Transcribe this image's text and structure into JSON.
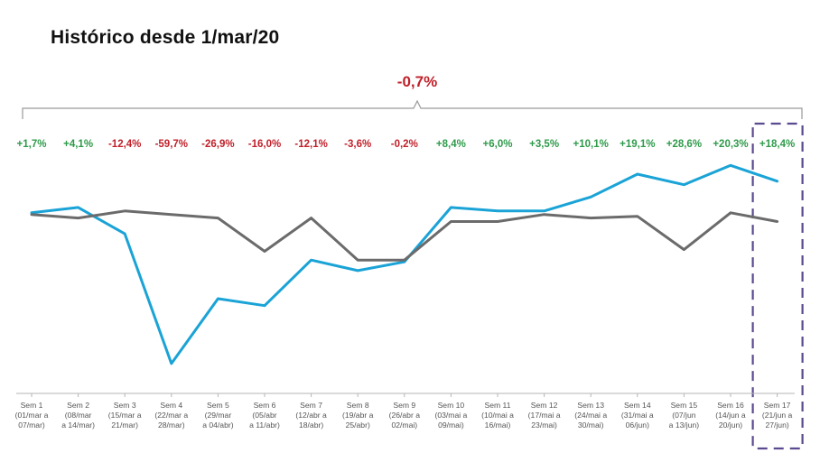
{
  "chart_data": {
    "type": "line",
    "title": "Histórico desde 1/mar/20",
    "total_change": "-0,7%",
    "categories": [
      [
        "Sem 1",
        "(01/mar a",
        "07/mar)"
      ],
      [
        "Sem 2",
        "(08/mar",
        "a 14/mar)"
      ],
      [
        "Sem 3",
        "(15/mar a",
        "21/mar)"
      ],
      [
        "Sem 4",
        "(22/mar a",
        "28/mar)"
      ],
      [
        "Sem 5",
        "(29/mar",
        "a 04/abr)"
      ],
      [
        "Sem 6",
        "(05/abr",
        "a 11/abr)"
      ],
      [
        "Sem 7",
        "(12/abr a",
        "18/abr)"
      ],
      [
        "Sem 8",
        "(19/abr a",
        "25/abr)"
      ],
      [
        "Sem 9",
        "(26/abr a",
        "02/mai)"
      ],
      [
        "Sem 10",
        "(03/mai a",
        "09/mai)"
      ],
      [
        "Sem 11",
        "(10/mai a",
        "16/mai)"
      ],
      [
        "Sem 12",
        "(17/mai a",
        "23/mai)"
      ],
      [
        "Sem 13",
        "(24/mai a",
        "30/mai)"
      ],
      [
        "Sem 14",
        "(31/mai a",
        "06/jun)"
      ],
      [
        "Sem 15",
        "(07/jun",
        "a 13/jun)"
      ],
      [
        "Sem 16",
        "(14/jun a",
        "20/jun)"
      ],
      [
        "Sem 17",
        "(21/jun a",
        "27/jun)"
      ]
    ],
    "changes": [
      "+1,7%",
      "+4,1%",
      "-12,4%",
      "-59,7%",
      "-26,9%",
      "-16,0%",
      "-12,1%",
      "-3,6%",
      "-0,2%",
      "+8,4%",
      "+6,0%",
      "+3,5%",
      "+10,1%",
      "+19,1%",
      "+28,6%",
      "+20,3%",
      "+18,4%"
    ],
    "series": [
      {
        "color": "#1aa3d6",
        "values": [
          101,
          104,
          89,
          15,
          52,
          48,
          74,
          68,
          73,
          104,
          102,
          102,
          110,
          123,
          117,
          128,
          119
        ]
      },
      {
        "color": "#6b6b6b",
        "values": [
          100,
          98,
          102,
          100,
          98,
          79,
          98,
          74,
          74,
          96,
          96,
          100,
          98,
          99,
          80,
          101,
          96
        ]
      }
    ],
    "ylim": [
      0,
      140
    ],
    "highlight_category": "Sem 17",
    "colors": {
      "positive": "#2e9a4a",
      "negative": "#c0202a",
      "highlight": "#5b4a8f"
    }
  }
}
